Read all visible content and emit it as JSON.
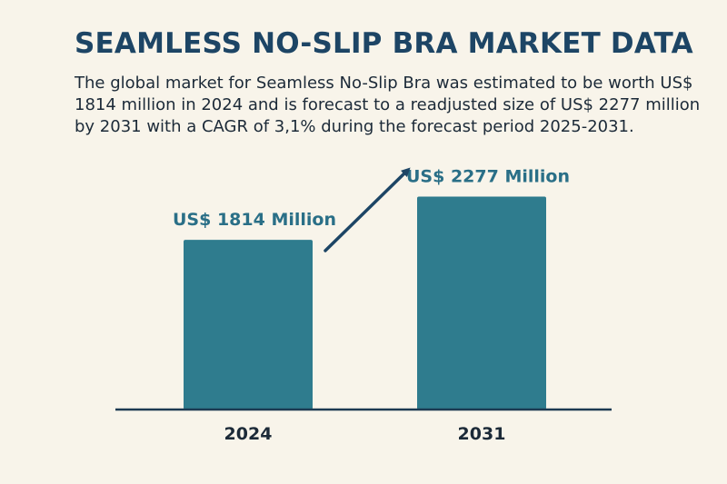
{
  "title": "SEAMLESS NO-SLIP BRA MARKET DATA",
  "description": "The global market for Seamless No-Slip Bra was estimated to be worth US$ 1814 million in 2024 and is forecast to a readjusted size of US$ 2277 million by 2031 with a CAGR of 3,1% during the forecast period 2025-2031.",
  "colors": {
    "background": "#f8f4ea",
    "bar": "#2f7c8e",
    "title": "#1d4565",
    "label": "#2a6f87",
    "axis": "#1d3a52",
    "arrow": "#1d4565"
  },
  "chart_data": {
    "type": "bar",
    "title": "",
    "xlabel": "",
    "ylabel": "",
    "categories": [
      "2024",
      "2031"
    ],
    "values": [
      1814,
      2277
    ],
    "data_labels": [
      "US$ 1814 Million",
      "US$ 2277 Million"
    ],
    "units": "US$ Million",
    "grid": false,
    "legend": "none",
    "annotation": "arrow from 2024 label toward 2031 label"
  }
}
